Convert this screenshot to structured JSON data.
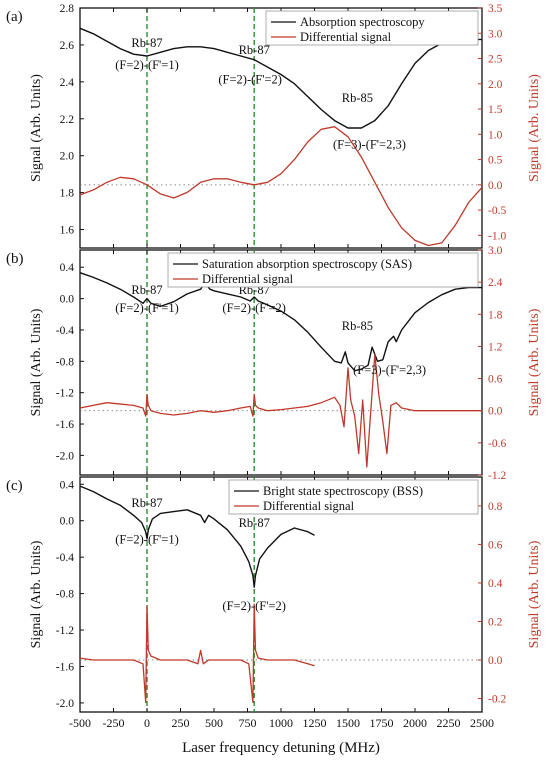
{
  "xlabel": "Laser frequency detuning (MHz)",
  "x_ticks": [
    "-500",
    "-250",
    "0",
    "250",
    "500",
    "750",
    "1000",
    "1250",
    "1500",
    "1750",
    "2000",
    "2250",
    "2500"
  ],
  "colors": {
    "main": "#111111",
    "diff": "#c0392b",
    "marker": "#2e8b2e",
    "zero": "#666666"
  },
  "chart_data": [
    {
      "type": "line",
      "panel_label": "(a)",
      "ylabel_left": "Signal (Arb. Units)",
      "ylabel_right": "Signal (Arb. Units)",
      "xlim": [
        -500,
        2500
      ],
      "ylim_left": [
        1.5,
        2.8
      ],
      "ylim_right": [
        -1.25,
        3.5
      ],
      "yticks_left": [
        "1.6",
        "1.8",
        "2.0",
        "2.2",
        "2.4",
        "2.6",
        "2.8"
      ],
      "yticks_right": [
        "-1.0",
        "-0.5",
        "0.0",
        "0.5",
        "1.0",
        "1.5",
        "2.0",
        "2.5",
        "3.0",
        "3.5"
      ],
      "legend": [
        "Absorption spectroscopy",
        "Differential signal"
      ],
      "annotations": [
        {
          "text": "Rb-87",
          "x": 0,
          "y": 2.59
        },
        {
          "text": "(F=2)-(F'=1)",
          "x": 0,
          "y": 2.47
        },
        {
          "text": "Rb-87",
          "x": 800,
          "y": 2.55
        },
        {
          "text": "(F=2)-(F'=2)",
          "x": 770,
          "y": 2.39
        },
        {
          "text": "Rb-85",
          "x": 1570,
          "y": 2.29
        },
        {
          "text": "(F=3)-(F'=2,3)",
          "x": 1660,
          "y": 2.04
        }
      ],
      "vlines": [
        0,
        800
      ],
      "series": [
        {
          "axis": "left",
          "x": [
            -500,
            -400,
            -300,
            -200,
            -100,
            0,
            100,
            200,
            300,
            400,
            500,
            600,
            700,
            800,
            900,
            1000,
            1100,
            1200,
            1300,
            1400,
            1500,
            1600,
            1700,
            1800,
            1900,
            2000,
            2100,
            2200,
            2300,
            2400,
            2500
          ],
          "values": [
            2.69,
            2.66,
            2.62,
            2.58,
            2.55,
            2.54,
            2.56,
            2.58,
            2.59,
            2.59,
            2.58,
            2.56,
            2.54,
            2.52,
            2.48,
            2.44,
            2.39,
            2.32,
            2.25,
            2.19,
            2.15,
            2.15,
            2.19,
            2.27,
            2.39,
            2.5,
            2.57,
            2.61,
            2.63,
            2.63,
            2.63
          ]
        },
        {
          "axis": "right",
          "x": [
            -500,
            -400,
            -300,
            -200,
            -100,
            0,
            100,
            200,
            300,
            400,
            500,
            600,
            700,
            800,
            900,
            1000,
            1100,
            1200,
            1300,
            1400,
            1500,
            1600,
            1700,
            1800,
            1900,
            2000,
            2100,
            2200,
            2300,
            2400,
            2500
          ],
          "values": [
            -0.2,
            -0.1,
            0.05,
            0.15,
            0.12,
            0.0,
            -0.18,
            -0.26,
            -0.15,
            0.05,
            0.12,
            0.12,
            0.05,
            0.0,
            0.05,
            0.22,
            0.5,
            0.85,
            1.1,
            1.15,
            0.95,
            0.55,
            0.05,
            -0.45,
            -0.85,
            -1.1,
            -1.2,
            -1.15,
            -0.8,
            -0.35,
            -0.05
          ]
        }
      ]
    },
    {
      "type": "line",
      "panel_label": "(b)",
      "ylabel_left": "Signal (Arb. Units)",
      "ylabel_right": "Signal (Arb. Units)",
      "xlim": [
        -500,
        2500
      ],
      "ylim_left": [
        -2.25,
        0.62
      ],
      "ylim_right": [
        -1.2,
        3.0
      ],
      "yticks_left": [
        "-2.0",
        "-1.6",
        "-1.2",
        "-0.8",
        "-0.4",
        "0.0",
        "0.4"
      ],
      "yticks_right": [
        "-1.2",
        "-0.6",
        "0.0",
        "0.6",
        "1.2",
        "1.8",
        "2.4",
        "3.0"
      ],
      "legend": [
        "Saturation absorption spectroscopy (SAS)",
        "Differential signal"
      ],
      "annotations": [
        {
          "text": "Rb-87",
          "x": 0,
          "y": 0.06
        },
        {
          "text": "(F=2)-(F'=1)",
          "x": 0,
          "y": -0.17
        },
        {
          "text": "Rb-87",
          "x": 800,
          "y": 0.06
        },
        {
          "text": "(F=2)-(F'=2)",
          "x": 800,
          "y": -0.17
        },
        {
          "text": "Rb-85",
          "x": 1570,
          "y": -0.4
        },
        {
          "text": "(F=3)-(F'=2,3)",
          "x": 1810,
          "y": -0.96
        }
      ],
      "vlines": [
        0,
        800
      ],
      "series": [
        {
          "axis": "left",
          "x": [
            -500,
            -400,
            -300,
            -200,
            -100,
            -30,
            0,
            30,
            100,
            200,
            300,
            400,
            430,
            470,
            500,
            600,
            700,
            770,
            800,
            830,
            900,
            1000,
            1100,
            1200,
            1300,
            1400,
            1450,
            1480,
            1500,
            1550,
            1600,
            1650,
            1680,
            1720,
            1760,
            1800,
            1840,
            1860,
            1900,
            2000,
            2100,
            2200,
            2300,
            2400,
            2500
          ],
          "values": [
            0.33,
            0.27,
            0.2,
            0.12,
            0.02,
            -0.06,
            0.0,
            -0.06,
            -0.1,
            -0.04,
            0.06,
            0.12,
            0.2,
            0.12,
            0.1,
            0.06,
            0.02,
            -0.03,
            0.02,
            -0.03,
            -0.08,
            -0.16,
            -0.27,
            -0.43,
            -0.62,
            -0.8,
            -0.82,
            -0.68,
            -0.82,
            -0.92,
            -0.9,
            -0.85,
            -0.62,
            -0.8,
            -0.78,
            -0.55,
            -0.48,
            -0.55,
            -0.4,
            -0.18,
            -0.05,
            0.05,
            0.12,
            0.14,
            0.14
          ]
        },
        {
          "axis": "right",
          "x": [
            -500,
            -300,
            -100,
            -30,
            -10,
            0,
            10,
            30,
            100,
            200,
            300,
            400,
            500,
            600,
            700,
            770,
            790,
            800,
            810,
            830,
            900,
            1000,
            1100,
            1200,
            1300,
            1400,
            1440,
            1470,
            1500,
            1520,
            1550,
            1580,
            1610,
            1640,
            1670,
            1700,
            1730,
            1760,
            1790,
            1820,
            1860,
            1900,
            2000,
            2100,
            2200,
            2300,
            2400,
            2500
          ],
          "values": [
            0.05,
            0.15,
            0.1,
            0.05,
            -0.1,
            0.3,
            0.1,
            0.0,
            -0.05,
            -0.08,
            -0.05,
            0.0,
            -0.03,
            0.0,
            0.05,
            0.08,
            -0.1,
            0.3,
            0.1,
            0.05,
            0.0,
            0.02,
            0.05,
            0.08,
            0.15,
            0.25,
            0.1,
            -0.3,
            0.8,
            0.2,
            -0.1,
            -0.8,
            0.2,
            -1.05,
            0.0,
            1.05,
            0.3,
            -0.2,
            -0.8,
            0.1,
            0.15,
            0.05,
            0.0,
            0.0,
            0.0,
            0.0,
            0.0,
            0.0
          ]
        }
      ]
    },
    {
      "type": "line",
      "panel_label": "(c)",
      "ylabel_left": "Signal (Arb. Units)",
      "ylabel_right": "Signal (Arb. Units)",
      "xlim": [
        -500,
        2500
      ],
      "ylim_left": [
        -2.1,
        0.48
      ],
      "ylim_right": [
        -0.27,
        0.95
      ],
      "yticks_left": [
        "-2.0",
        "-1.6",
        "-1.2",
        "-0.8",
        "-0.4",
        "0.0",
        "0.4"
      ],
      "yticks_right": [
        "-0.2",
        "0.0",
        "0.2",
        "0.4",
        "0.6",
        "0.8"
      ],
      "legend": [
        "Bright state spectroscopy (BSS)",
        "Differential signal"
      ],
      "annotations": [
        {
          "text": "Rb-87",
          "x": 0,
          "y": 0.15
        },
        {
          "text": "(F=2)-(F'=1)",
          "x": 0,
          "y": -0.25
        },
        {
          "text": "Rb-87",
          "x": 800,
          "y": -0.07
        },
        {
          "text": "(F=2)-(F'=2)",
          "x": 800,
          "y": -0.98
        }
      ],
      "vlines": [
        0,
        800
      ],
      "series": [
        {
          "axis": "left",
          "x": [
            -500,
            -400,
            -300,
            -200,
            -100,
            -40,
            -10,
            0,
            10,
            40,
            100,
            200,
            300,
            400,
            430,
            460,
            500,
            600,
            700,
            760,
            790,
            800,
            810,
            840,
            900,
            1000,
            1100,
            1200,
            1250
          ],
          "values": [
            0.38,
            0.32,
            0.24,
            0.17,
            0.06,
            -0.02,
            -0.12,
            -0.2,
            -0.1,
            0.02,
            0.08,
            0.1,
            0.12,
            0.06,
            -0.02,
            0.06,
            0.02,
            -0.1,
            -0.28,
            -0.45,
            -0.6,
            -0.73,
            -0.6,
            -0.42,
            -0.3,
            -0.15,
            -0.08,
            -0.12,
            -0.16
          ]
        },
        {
          "axis": "right",
          "x": [
            -500,
            -400,
            -300,
            -200,
            -100,
            -30,
            -10,
            0,
            10,
            30,
            100,
            200,
            300,
            380,
            400,
            420,
            460,
            500,
            600,
            700,
            760,
            790,
            800,
            810,
            830,
            900,
            1000,
            1100,
            1200,
            1250
          ],
          "values": [
            0.01,
            0.0,
            0.0,
            0.0,
            0.0,
            -0.02,
            -0.22,
            0.28,
            0.05,
            0.02,
            0.0,
            0.0,
            0.0,
            -0.02,
            0.05,
            -0.02,
            0.0,
            0.0,
            0.0,
            0.0,
            -0.02,
            -0.22,
            0.29,
            0.05,
            0.01,
            0.0,
            0.0,
            0.0,
            -0.02,
            -0.03
          ]
        }
      ]
    }
  ]
}
